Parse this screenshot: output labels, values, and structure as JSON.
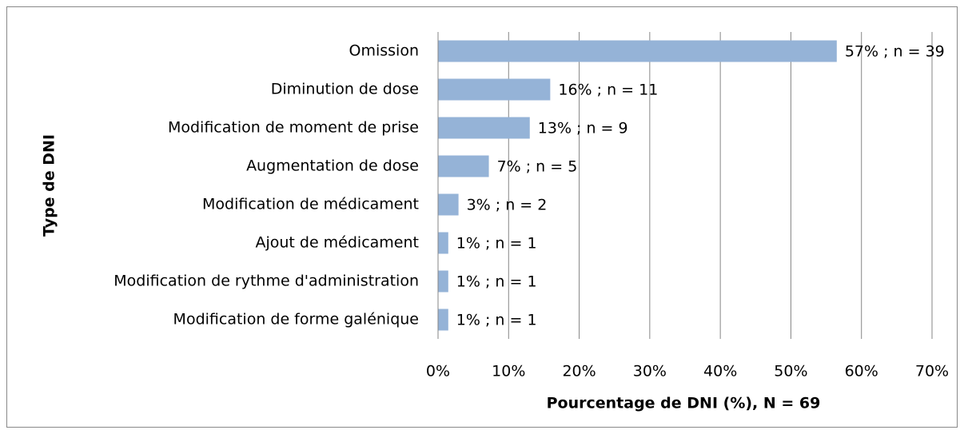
{
  "chart_data": {
    "type": "bar",
    "orientation": "horizontal",
    "xlabel": "Pourcentage de DNI (%), N = 69",
    "ylabel": "Type de DNI",
    "categories": [
      "Omission",
      "Diminution de dose",
      "Modification de moment de prise",
      "Augmentation de dose",
      "Modification de médicament",
      "Ajout de médicament",
      "Modification de rythme d'administration",
      "Modification de forme galénique"
    ],
    "values": [
      56.5,
      15.9,
      13.0,
      7.2,
      2.9,
      1.45,
      1.45,
      1.45
    ],
    "value_labels": [
      "57% ; n = 39",
      "16% ; n = 11",
      "13% ; n = 9",
      "7% ; n = 5",
      "3% ; n = 2",
      "1% ; n = 1",
      "1% ; n = 1",
      "1% ; n = 1"
    ],
    "color": "#95b3d7",
    "xlim": [
      0,
      70
    ],
    "xticks": [
      {
        "value": 0,
        "label": "0%"
      },
      {
        "value": 10,
        "label": "10%"
      },
      {
        "value": 20,
        "label": "20%"
      },
      {
        "value": 30,
        "label": "30%"
      },
      {
        "value": 40,
        "label": "40%"
      },
      {
        "value": 50,
        "label": "50%"
      },
      {
        "value": 60,
        "label": "60%"
      },
      {
        "value": 70,
        "label": "70%"
      }
    ],
    "grid": true
  }
}
